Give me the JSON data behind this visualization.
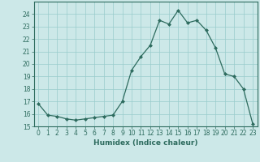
{
  "x": [
    0,
    1,
    2,
    3,
    4,
    5,
    6,
    7,
    8,
    9,
    10,
    11,
    12,
    13,
    14,
    15,
    16,
    17,
    18,
    19,
    20,
    21,
    22,
    23
  ],
  "y": [
    16.8,
    15.9,
    15.8,
    15.6,
    15.5,
    15.6,
    15.7,
    15.8,
    15.9,
    17.0,
    19.5,
    20.6,
    21.5,
    23.5,
    23.2,
    24.3,
    23.3,
    23.5,
    22.7,
    21.3,
    19.2,
    19.0,
    18.0,
    15.2
  ],
  "line_color": "#2d6b5e",
  "marker": "D",
  "marker_size": 2.0,
  "bg_color": "#cce8e8",
  "grid_color": "#99cccc",
  "xlabel": "Humidex (Indice chaleur)",
  "ylim": [
    15,
    25
  ],
  "xlim": [
    -0.5,
    23.5
  ],
  "yticks": [
    15,
    16,
    17,
    18,
    19,
    20,
    21,
    22,
    23,
    24
  ],
  "xticks": [
    0,
    1,
    2,
    3,
    4,
    5,
    6,
    7,
    8,
    9,
    10,
    11,
    12,
    13,
    14,
    15,
    16,
    17,
    18,
    19,
    20,
    21,
    22,
    23
  ],
  "label_fontsize": 6.5,
  "tick_fontsize": 5.5
}
